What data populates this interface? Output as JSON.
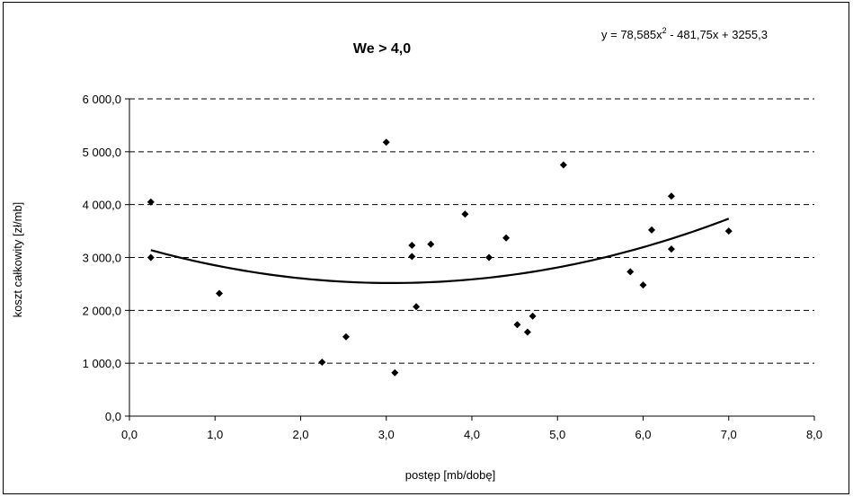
{
  "chart_data": {
    "type": "scatter",
    "title": "We > 4,0",
    "xlabel": "postęp [mb/dobę]",
    "ylabel": "koszt całkowity [zł/mb]",
    "xlim": [
      0,
      8
    ],
    "ylim": [
      0,
      6000
    ],
    "x_ticks": [
      0,
      1,
      2,
      3,
      4,
      5,
      6,
      7,
      8
    ],
    "x_tick_labels": [
      "0,0",
      "1,0",
      "2,0",
      "3,0",
      "4,0",
      "5,0",
      "6,0",
      "7,0",
      "8,0"
    ],
    "y_ticks": [
      0,
      1000,
      2000,
      3000,
      4000,
      5000,
      6000
    ],
    "y_tick_labels": [
      "0,0",
      "1 000,0",
      "2 000,0",
      "3 000,0",
      "4 000,0",
      "5 000,0",
      "6 000,0"
    ],
    "grid": "horizontal-dashed",
    "marker": "diamond",
    "marker_color": "#000000",
    "points": [
      {
        "x": 0.25,
        "y": 4050
      },
      {
        "x": 0.25,
        "y": 3000
      },
      {
        "x": 1.05,
        "y": 2320
      },
      {
        "x": 2.25,
        "y": 1020
      },
      {
        "x": 2.53,
        "y": 1500
      },
      {
        "x": 3.0,
        "y": 5180
      },
      {
        "x": 3.1,
        "y": 820
      },
      {
        "x": 3.3,
        "y": 3230
      },
      {
        "x": 3.3,
        "y": 3020
      },
      {
        "x": 3.35,
        "y": 2070
      },
      {
        "x": 3.52,
        "y": 3250
      },
      {
        "x": 3.92,
        "y": 3820
      },
      {
        "x": 4.2,
        "y": 3000
      },
      {
        "x": 4.4,
        "y": 3370
      },
      {
        "x": 4.53,
        "y": 1730
      },
      {
        "x": 4.65,
        "y": 1590
      },
      {
        "x": 4.71,
        "y": 1890
      },
      {
        "x": 5.07,
        "y": 4750
      },
      {
        "x": 5.85,
        "y": 2730
      },
      {
        "x": 6.0,
        "y": 2480
      },
      {
        "x": 6.1,
        "y": 3520
      },
      {
        "x": 6.33,
        "y": 4160
      },
      {
        "x": 6.33,
        "y": 3160
      },
      {
        "x": 7.0,
        "y": 3500
      }
    ],
    "trendline": {
      "type": "polynomial",
      "coefficients": [
        78.585,
        -481.75,
        3255.3
      ],
      "x_range": [
        0.25,
        7.0
      ],
      "equation_label": "y = 78,585x",
      "equation_exponent": "2",
      "equation_rest": " - 481,75x + 3255,3",
      "color": "#000000"
    }
  }
}
